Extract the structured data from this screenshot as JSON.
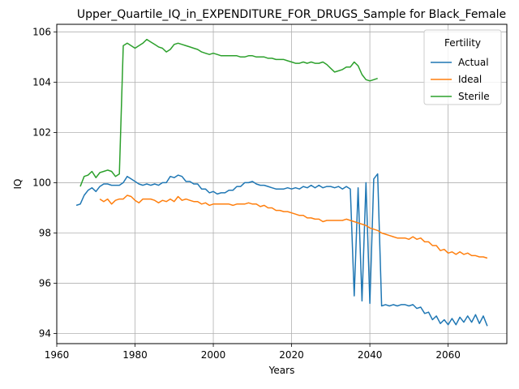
{
  "chart_data": {
    "type": "line",
    "title": "Upper_Quartile_IQ_in_EXPENDITURE_FOR_DRUGS_Sample for Black_Female",
    "xlabel": "Years",
    "ylabel": "IQ",
    "xlim": [
      1960,
      2075
    ],
    "ylim": [
      93.6,
      106.3
    ],
    "x_ticks": [
      1960,
      1980,
      2000,
      2020,
      2040,
      2060
    ],
    "y_ticks": [
      94,
      96,
      98,
      100,
      102,
      104,
      106
    ],
    "grid": true,
    "legend": {
      "title": "Fertility",
      "placement": "top-right"
    },
    "colors": {
      "Actual": "#1f77b4",
      "Ideal": "#ff7f0e",
      "Sterile": "#2ca02c"
    },
    "series": [
      {
        "name": "Actual",
        "x": [
          1965,
          1966,
          1967,
          1968,
          1969,
          1970,
          1971,
          1972,
          1973,
          1974,
          1975,
          1976,
          1977,
          1978,
          1979,
          1980,
          1981,
          1982,
          1983,
          1984,
          1985,
          1986,
          1987,
          1988,
          1989,
          1990,
          1991,
          1992,
          1993,
          1994,
          1995,
          1996,
          1997,
          1998,
          1999,
          2000,
          2001,
          2002,
          2003,
          2004,
          2005,
          2006,
          2007,
          2008,
          2009,
          2010,
          2011,
          2012,
          2013,
          2014,
          2015,
          2016,
          2017,
          2018,
          2019,
          2020,
          2021,
          2022,
          2023,
          2024,
          2025,
          2026,
          2027,
          2028,
          2029,
          2030,
          2031,
          2032,
          2033,
          2034,
          2035,
          2036,
          2037,
          2038,
          2039,
          2040,
          2041,
          2042,
          2043,
          2044,
          2045,
          2046,
          2047,
          2048,
          2049,
          2050,
          2051,
          2052,
          2053,
          2054,
          2055,
          2056,
          2057,
          2058,
          2059,
          2060,
          2061,
          2062,
          2063,
          2064,
          2065,
          2066,
          2067,
          2068,
          2069,
          2070
        ],
        "values": [
          99.1,
          99.15,
          99.5,
          99.7,
          99.8,
          99.65,
          99.85,
          99.95,
          99.95,
          99.9,
          99.9,
          99.9,
          100.0,
          100.25,
          100.15,
          100.05,
          99.95,
          99.9,
          99.95,
          99.9,
          99.95,
          99.9,
          100.0,
          100.0,
          100.25,
          100.2,
          100.3,
          100.25,
          100.05,
          100.05,
          99.95,
          99.95,
          99.75,
          99.75,
          99.6,
          99.65,
          99.55,
          99.6,
          99.6,
          99.7,
          99.7,
          99.85,
          99.85,
          100.0,
          100.0,
          100.05,
          99.95,
          99.9,
          99.9,
          99.85,
          99.8,
          99.75,
          99.75,
          99.75,
          99.8,
          99.75,
          99.8,
          99.75,
          99.85,
          99.8,
          99.9,
          99.8,
          99.9,
          99.8,
          99.85,
          99.85,
          99.8,
          99.85,
          99.75,
          99.85,
          99.75,
          95.5,
          99.8,
          95.3,
          100.0,
          95.2,
          100.15,
          100.35,
          95.1,
          95.15,
          95.1,
          95.15,
          95.1,
          95.15,
          95.15,
          95.1,
          95.15,
          95.0,
          95.05,
          94.8,
          94.85,
          94.55,
          94.7,
          94.4,
          94.55,
          94.35,
          94.6,
          94.35,
          94.65,
          94.45,
          94.7,
          94.45,
          94.75,
          94.4,
          94.7,
          94.3
        ]
      },
      {
        "name": "Ideal",
        "x": [
          1971,
          1972,
          1973,
          1974,
          1975,
          1976,
          1977,
          1978,
          1979,
          1980,
          1981,
          1982,
          1983,
          1984,
          1985,
          1986,
          1987,
          1988,
          1989,
          1990,
          1991,
          1992,
          1993,
          1994,
          1995,
          1996,
          1997,
          1998,
          1999,
          2000,
          2001,
          2002,
          2003,
          2004,
          2005,
          2006,
          2007,
          2008,
          2009,
          2010,
          2011,
          2012,
          2013,
          2014,
          2015,
          2016,
          2017,
          2018,
          2019,
          2020,
          2021,
          2022,
          2023,
          2024,
          2025,
          2026,
          2027,
          2028,
          2029,
          2030,
          2031,
          2032,
          2033,
          2034,
          2035,
          2036,
          2037,
          2038,
          2039,
          2040,
          2041,
          2042,
          2043,
          2044,
          2045,
          2046,
          2047,
          2048,
          2049,
          2050,
          2051,
          2052,
          2053,
          2054,
          2055,
          2056,
          2057,
          2058,
          2059,
          2060,
          2061,
          2062,
          2063,
          2064,
          2065,
          2066,
          2067,
          2068,
          2069,
          2070
        ],
        "values": [
          99.35,
          99.25,
          99.35,
          99.15,
          99.3,
          99.35,
          99.35,
          99.5,
          99.45,
          99.3,
          99.2,
          99.35,
          99.35,
          99.35,
          99.3,
          99.2,
          99.3,
          99.25,
          99.35,
          99.25,
          99.45,
          99.3,
          99.35,
          99.3,
          99.25,
          99.25,
          99.15,
          99.2,
          99.1,
          99.15,
          99.15,
          99.15,
          99.15,
          99.15,
          99.1,
          99.15,
          99.15,
          99.15,
          99.2,
          99.15,
          99.15,
          99.05,
          99.1,
          99.0,
          99.0,
          98.9,
          98.9,
          98.85,
          98.85,
          98.8,
          98.75,
          98.7,
          98.7,
          98.6,
          98.6,
          98.55,
          98.55,
          98.45,
          98.5,
          98.5,
          98.5,
          98.5,
          98.5,
          98.55,
          98.5,
          98.45,
          98.4,
          98.35,
          98.3,
          98.2,
          98.15,
          98.1,
          98.0,
          97.95,
          97.9,
          97.85,
          97.8,
          97.8,
          97.8,
          97.75,
          97.85,
          97.75,
          97.8,
          97.65,
          97.65,
          97.5,
          97.5,
          97.3,
          97.35,
          97.2,
          97.25,
          97.15,
          97.25,
          97.15,
          97.2,
          97.1,
          97.1,
          97.05,
          97.05,
          97.0
        ]
      },
      {
        "name": "Sterile",
        "x": [
          1966,
          1967,
          1968,
          1969,
          1970,
          1971,
          1972,
          1973,
          1974,
          1975,
          1976,
          1977,
          1978,
          1979,
          1980,
          1981,
          1982,
          1983,
          1984,
          1985,
          1986,
          1987,
          1988,
          1989,
          1990,
          1991,
          1992,
          1993,
          1994,
          1995,
          1996,
          1997,
          1998,
          1999,
          2000,
          2001,
          2002,
          2003,
          2004,
          2005,
          2006,
          2007,
          2008,
          2009,
          2010,
          2011,
          2012,
          2013,
          2014,
          2015,
          2016,
          2017,
          2018,
          2019,
          2020,
          2021,
          2022,
          2023,
          2024,
          2025,
          2026,
          2027,
          2028,
          2029,
          2030,
          2031,
          2032,
          2033,
          2034,
          2035,
          2036,
          2037,
          2038,
          2039,
          2040,
          2041,
          2042
        ],
        "values": [
          99.85,
          100.25,
          100.3,
          100.45,
          100.2,
          100.4,
          100.45,
          100.5,
          100.45,
          100.25,
          100.35,
          105.45,
          105.55,
          105.45,
          105.35,
          105.45,
          105.55,
          105.7,
          105.6,
          105.5,
          105.4,
          105.35,
          105.2,
          105.3,
          105.5,
          105.55,
          105.5,
          105.45,
          105.4,
          105.35,
          105.3,
          105.2,
          105.15,
          105.1,
          105.15,
          105.1,
          105.05,
          105.05,
          105.05,
          105.05,
          105.05,
          105.0,
          105.0,
          105.05,
          105.05,
          105.0,
          105.0,
          105.0,
          104.95,
          104.95,
          104.9,
          104.9,
          104.9,
          104.85,
          104.8,
          104.75,
          104.75,
          104.8,
          104.75,
          104.8,
          104.75,
          104.75,
          104.8,
          104.7,
          104.55,
          104.4,
          104.45,
          104.5,
          104.6,
          104.6,
          104.8,
          104.65,
          104.3,
          104.1,
          104.05,
          104.1,
          104.15
        ]
      }
    ]
  }
}
